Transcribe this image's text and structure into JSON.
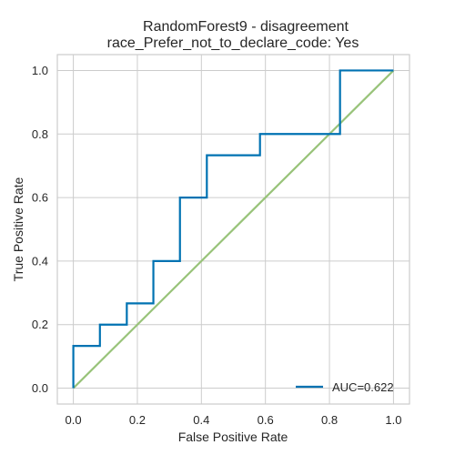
{
  "chart_data": {
    "type": "line",
    "title": [
      "RandomForest9 - disagreement",
      "race_Prefer_not_to_declare_code: Yes"
    ],
    "xlabel": "False Positive Rate",
    "ylabel": "True Positive Rate",
    "xlim": [
      -0.05,
      1.05
    ],
    "ylim": [
      -0.05,
      1.05
    ],
    "x_ticks": [
      "0.0",
      "0.2",
      "0.4",
      "0.6",
      "0.8",
      "1.0"
    ],
    "y_ticks": [
      "0.0",
      "0.2",
      "0.4",
      "0.6",
      "0.8",
      "1.0"
    ],
    "grid": true,
    "legend_position": "lower-right",
    "series": [
      {
        "name": "AUC=0.622",
        "color": "#0072b2",
        "x": [
          0.0,
          0.0,
          0.083,
          0.083,
          0.167,
          0.167,
          0.25,
          0.25,
          0.333,
          0.333,
          0.417,
          0.417,
          0.583,
          0.583,
          0.833,
          0.833,
          1.0
        ],
        "y": [
          0.0,
          0.133,
          0.133,
          0.2,
          0.2,
          0.267,
          0.267,
          0.4,
          0.4,
          0.6,
          0.6,
          0.733,
          0.733,
          0.8,
          0.8,
          1.0,
          1.0
        ]
      },
      {
        "color": "#98c379",
        "x": [
          0.0,
          1.0
        ],
        "y": [
          0.0,
          1.0
        ]
      }
    ]
  }
}
